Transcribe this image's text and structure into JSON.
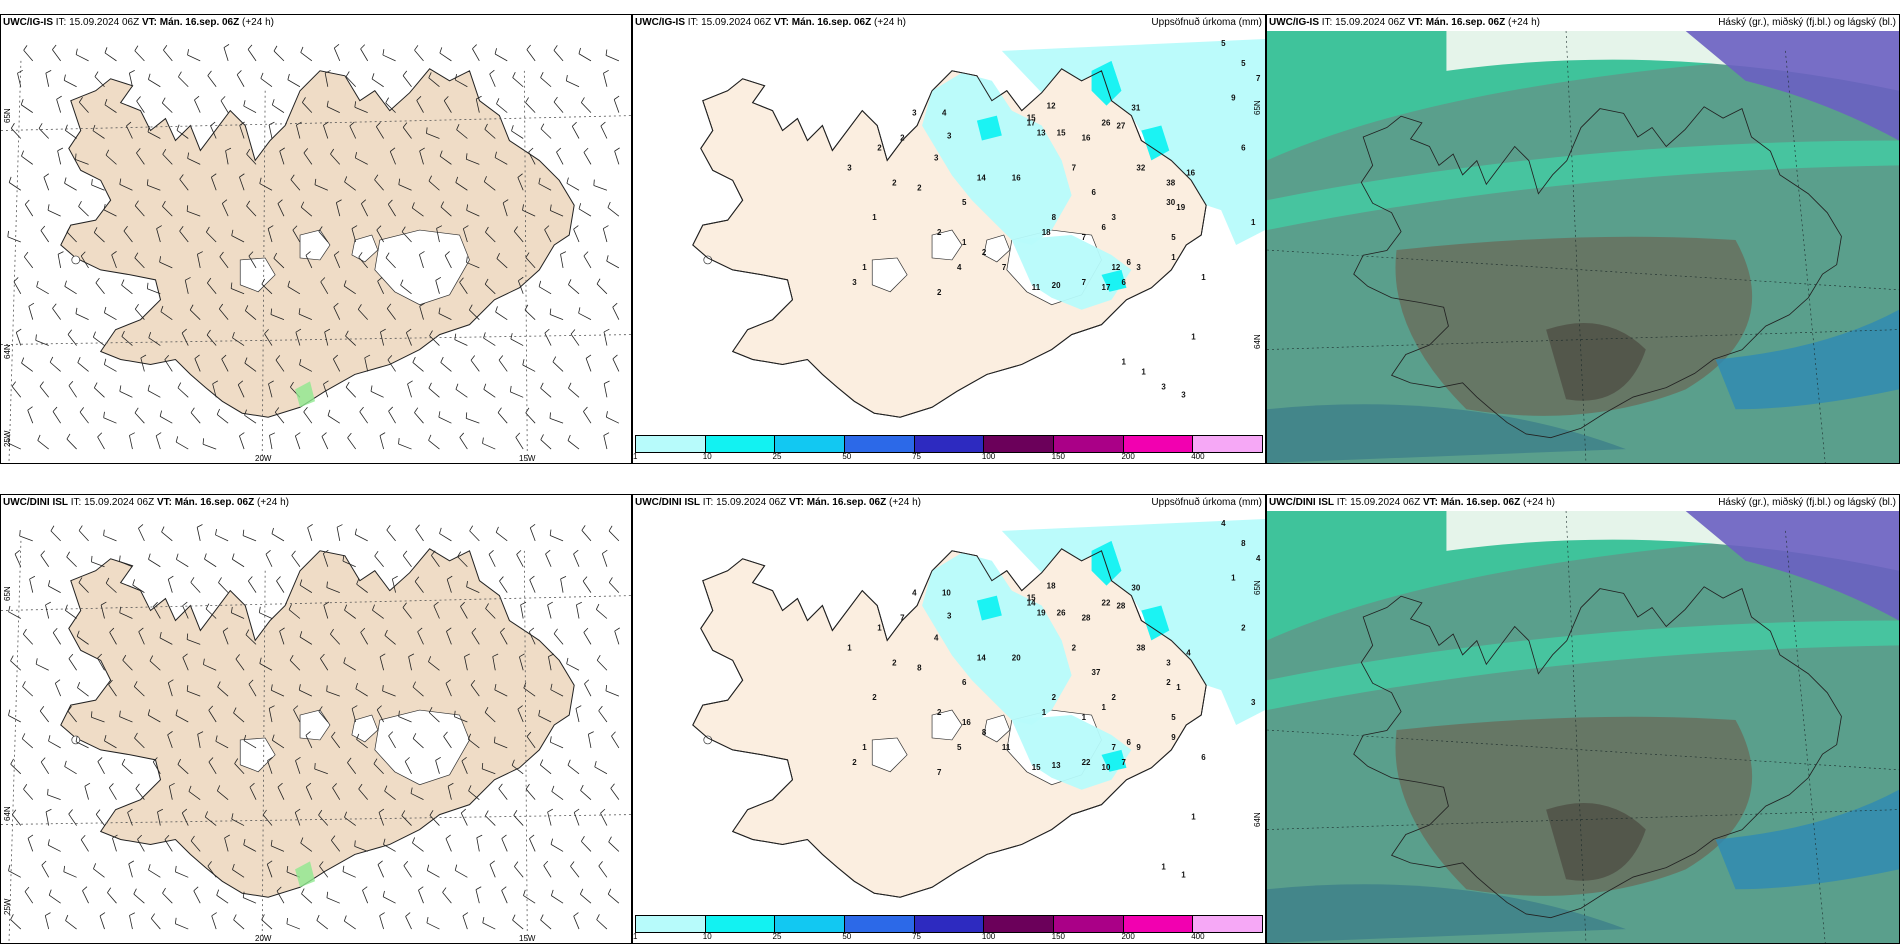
{
  "rows": [
    {
      "model": "UWC/IG-IS",
      "it_label": "IT:",
      "it_value": "15.09.2024 06Z",
      "vt_label": "VT:",
      "vt_value": "Mán. 16.sep. 06Z",
      "lead": "(+24 h)",
      "lat_labels": [
        "65N",
        "64N",
        "25W"
      ],
      "lon_labels": [
        "20W",
        "15W"
      ],
      "precip_lat_label": "65N",
      "precip_lat_label2": "64N",
      "precip_numbers": [
        "3",
        "2",
        "4",
        "3",
        "3",
        "2",
        "14",
        "5",
        "16",
        "17",
        "12",
        "15",
        "13",
        "15",
        "16",
        "26",
        "27",
        "31",
        "32",
        "6",
        "7",
        "2",
        "1",
        "1",
        "3",
        "3",
        "2",
        "2",
        "8",
        "18",
        "7",
        "6",
        "3",
        "38",
        "30",
        "16",
        "19",
        "5",
        "2",
        "1",
        "4",
        "2",
        "7",
        "11",
        "20",
        "7",
        "17",
        "12",
        "6",
        "6",
        "3",
        "1",
        "1",
        "5",
        "5",
        "7",
        "9",
        "6",
        "1",
        "1",
        "3",
        "3",
        "1",
        "1"
      ]
    },
    {
      "model": "UWC/DINI ISL",
      "it_label": "IT:",
      "it_value": "15.09.2024 06Z",
      "vt_label": "VT:",
      "vt_value": "Mán. 16.sep. 06Z",
      "lead": "(+24 h)",
      "lat_labels": [
        "65N",
        "64N",
        "25W"
      ],
      "lon_labels": [
        "20W",
        "15W"
      ],
      "precip_lat_label": "65N",
      "precip_lat_label2": "64N",
      "precip_numbers": [
        "4",
        "7",
        "10",
        "3",
        "4",
        "8",
        "14",
        "6",
        "20",
        "14",
        "18",
        "15",
        "19",
        "26",
        "28",
        "22",
        "28",
        "30",
        "38",
        "37",
        "2",
        "1",
        "2",
        "1",
        "1",
        "2",
        "2",
        "2",
        "2",
        "1",
        "1",
        "1",
        "2",
        "3",
        "2",
        "4",
        "1",
        "5",
        "8",
        "16",
        "5",
        "7",
        "11",
        "15",
        "13",
        "22",
        "10",
        "7",
        "6",
        "7",
        "9",
        "9",
        "6",
        "4",
        "8",
        "4",
        "1",
        "2",
        "3",
        "1",
        "1",
        "1"
      ]
    }
  ],
  "precip_title": "Uppsöfnuð úrkoma (mm)",
  "cloud_title": "Háský (gr.), miðský (fj.bl.) og lágský (bl.)",
  "colorbar": {
    "colors": [
      "#b7fbfb",
      "#12f2f2",
      "#12c8f2",
      "#2c69e8",
      "#2d2ac0",
      "#6b005a",
      "#aa0087",
      "#f200b0",
      "#f6a8f6"
    ],
    "ticks": [
      "1",
      "10",
      "25",
      "50",
      "75",
      "100",
      "150",
      "200",
      "400"
    ]
  }
}
